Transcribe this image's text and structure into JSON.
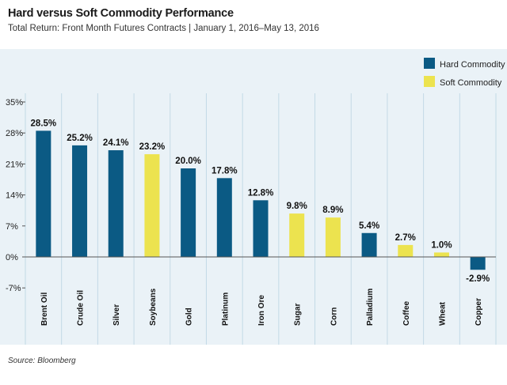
{
  "header": {
    "title": "Hard versus Soft Commodity Performance",
    "subtitle": "Total Return: Front Month Futures Contracts | January 1, 2016–May 13, 2016"
  },
  "footer": {
    "source": "Source: Bloomberg"
  },
  "colors": {
    "hard": "#0b5a84",
    "soft": "#ece34f",
    "panel": "#eaf2f7",
    "grid": "#c3dae6",
    "axis": "#555555"
  },
  "chart_data": {
    "type": "bar",
    "title": "",
    "xlabel": "",
    "ylabel": "",
    "ylim": [
      -7,
      35
    ],
    "yticks": [
      -7,
      0,
      7,
      14,
      21,
      28,
      35
    ],
    "ytick_labels": [
      "-7%",
      "0%",
      "7%",
      "14%",
      "21%",
      "28%",
      "35%"
    ],
    "grid": "vertical separators between categories",
    "legend_position": "top-right",
    "categories": [
      "Brent Oil",
      "Crude Oil",
      "Silver",
      "Soybeans",
      "Gold",
      "Platinum",
      "Iron Ore",
      "Sugar",
      "Corn",
      "Palladium",
      "Coffee",
      "Wheat",
      "Copper"
    ],
    "values": [
      28.5,
      25.2,
      24.1,
      23.2,
      20.0,
      17.8,
      12.8,
      9.8,
      8.9,
      5.4,
      2.7,
      1.0,
      -2.9
    ],
    "value_labels": [
      "28.5%",
      "25.2%",
      "24.1%",
      "23.2%",
      "20.0%",
      "17.8%",
      "12.8%",
      "9.8%",
      "8.9%",
      "5.4%",
      "2.7%",
      "1.0%",
      "-2.9%"
    ],
    "groups": [
      "hard",
      "hard",
      "hard",
      "soft",
      "hard",
      "hard",
      "hard",
      "soft",
      "soft",
      "hard",
      "soft",
      "soft",
      "hard"
    ],
    "legend": [
      {
        "key": "hard",
        "label": "Hard Commodity"
      },
      {
        "key": "soft",
        "label": "Soft Commodity"
      }
    ]
  }
}
